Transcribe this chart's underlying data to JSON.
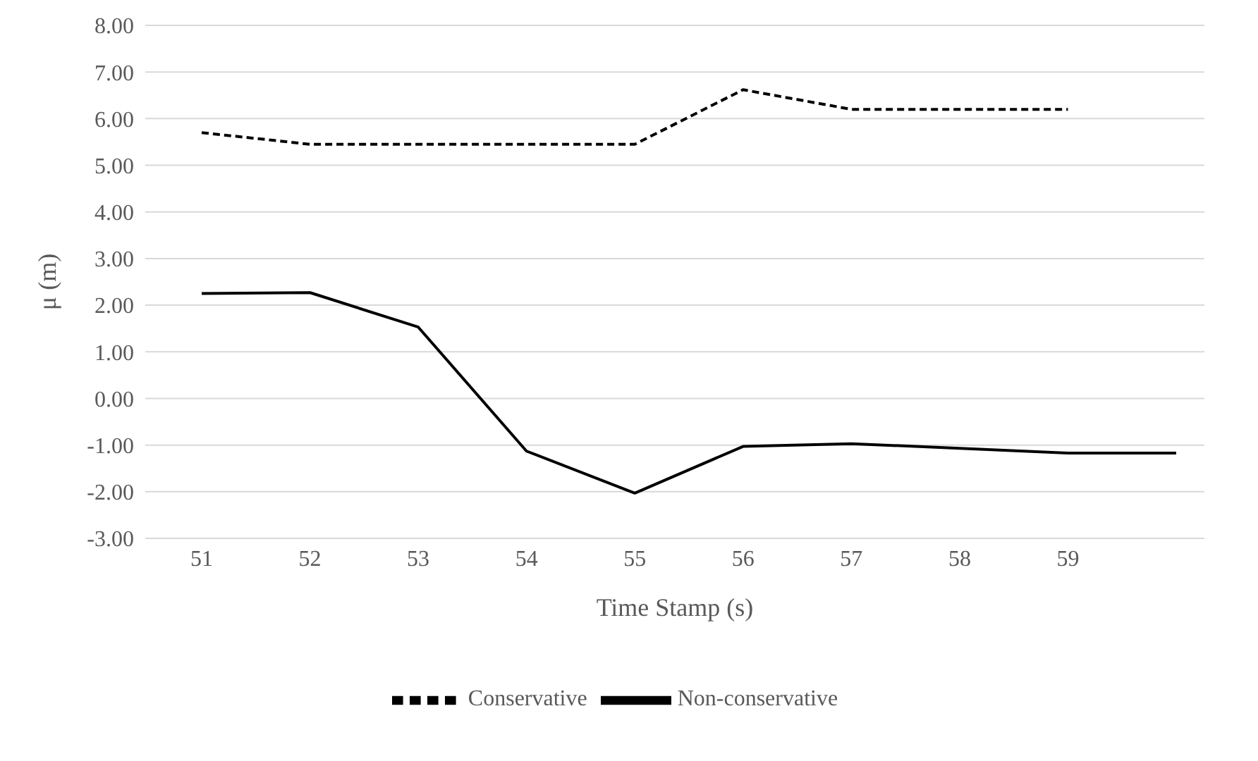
{
  "chart_data": {
    "type": "line",
    "xlabel": "Time Stamp (s)",
    "ylabel": "μ (m)",
    "categories": [
      "51",
      "52",
      "53",
      "54",
      "55",
      "56",
      "57",
      "58",
      "59",
      null
    ],
    "series": [
      {
        "name": "Conservative",
        "color": "#000000",
        "line_style": "dashed",
        "values": [
          5.7,
          5.45,
          5.45,
          5.45,
          5.45,
          6.62,
          6.2,
          6.2,
          6.2,
          null
        ]
      },
      {
        "name": "Non-conservative",
        "color": "#000000",
        "line_style": "solid",
        "values": [
          2.25,
          2.27,
          1.53,
          -1.13,
          -2.03,
          -1.03,
          -0.97,
          -1.07,
          -1.17,
          -1.17
        ]
      }
    ],
    "ylim": [
      -3,
      8
    ],
    "yticks": [
      {
        "value": -3,
        "label": "-3.00"
      },
      {
        "value": -2,
        "label": "-2.00"
      },
      {
        "value": -1,
        "label": "-1.00"
      },
      {
        "value": 0,
        "label": "0.00"
      },
      {
        "value": 1,
        "label": "1.00"
      },
      {
        "value": 2,
        "label": "2.00"
      },
      {
        "value": 3,
        "label": "3.00"
      },
      {
        "value": 4,
        "label": "4.00"
      },
      {
        "value": 5,
        "label": "5.00"
      },
      {
        "value": 6,
        "label": "6.00"
      },
      {
        "value": 7,
        "label": "7.00"
      },
      {
        "value": 8,
        "label": "8.00"
      }
    ],
    "grid": "y",
    "legend": "bottom",
    "marker": "none"
  }
}
